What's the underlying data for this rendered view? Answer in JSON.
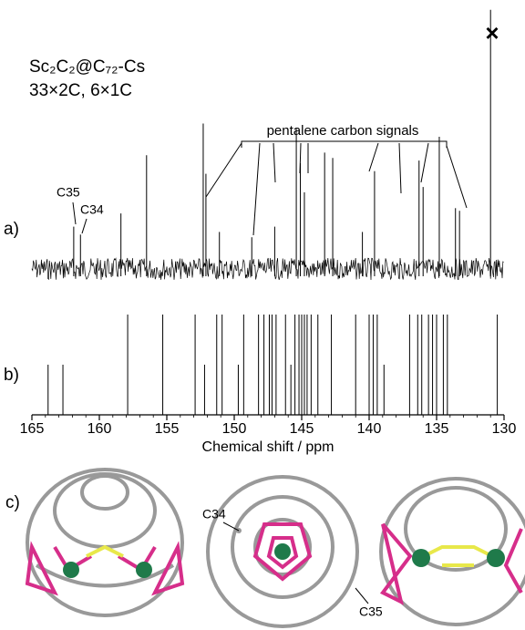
{
  "chart_data": [
    {
      "type": "spectrum",
      "panel": "a)",
      "title": "Sc₂C₂@C₇₂-Cs",
      "subtitle": "33×2C, 6×1C",
      "annotation": "pentalene carbon signals",
      "peak_labels": [
        "C35",
        "C34"
      ],
      "solvent_mark": "×",
      "color": "#000000",
      "xlim": [
        165,
        130
      ],
      "ylim": [
        0,
        100
      ],
      "x": [
        161.9,
        161.4,
        158.4,
        156.5,
        152.3,
        152.1,
        151.1,
        148.7,
        147.0,
        145.4,
        145.1,
        144.8,
        143.3,
        142.7,
        140.5,
        139.6,
        136.3,
        136.0,
        134.8,
        133.6,
        133.3,
        131.0
      ],
      "values": [
        16,
        13,
        21,
        43,
        55,
        36,
        14,
        12,
        16,
        53,
        40,
        29,
        44,
        42,
        14,
        37,
        41,
        31,
        50,
        23,
        22,
        98
      ]
    },
    {
      "type": "stick",
      "panel": "b)",
      "color": "#000000",
      "xlim": [
        165,
        130
      ],
      "ylim": [
        0,
        2
      ],
      "xticks": [
        165,
        160,
        155,
        150,
        145,
        140,
        135,
        130
      ],
      "xlabel": "Chemical shift / ppm",
      "x": [
        163.8,
        162.7,
        157.9,
        155.3,
        152.9,
        152.2,
        151.3,
        150.9,
        149.7,
        149.3,
        148.2,
        147.8,
        147.4,
        147.2,
        146.9,
        146.2,
        145.8,
        145.5,
        145.2,
        145.0,
        144.8,
        144.6,
        144.3,
        143.8,
        142.8,
        141.0,
        140.0,
        139.7,
        139.4,
        138.9,
        137.0,
        136.4,
        136.1,
        135.6,
        135.3,
        135.0,
        134.5,
        134.2,
        130.5
      ],
      "values": [
        1,
        1,
        2,
        2,
        2,
        1,
        2,
        2,
        1,
        2,
        2,
        2,
        2,
        2,
        2,
        2,
        1,
        2,
        2,
        2,
        2,
        2,
        2,
        2,
        2,
        2,
        2,
        2,
        2,
        1,
        2,
        2,
        2,
        2,
        2,
        2,
        2,
        2,
        2
      ]
    }
  ],
  "figure": {
    "panel_c": "c)",
    "molecule_labels": [
      "C34",
      "C35"
    ]
  }
}
